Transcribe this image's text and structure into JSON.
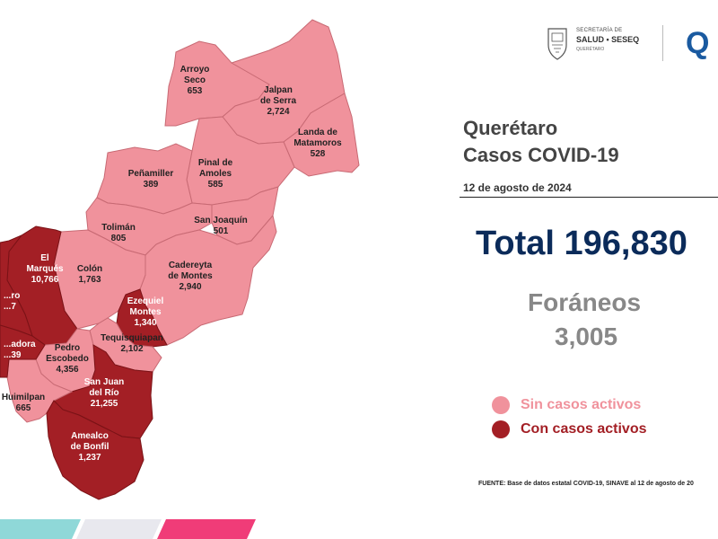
{
  "header": {
    "logo_line1": "SECRETARÍA DE",
    "logo_line2": "SALUD • SESEQ",
    "logo_line3": "QUERÉTARO",
    "logo_q": "Q"
  },
  "title_line1": "Querétaro",
  "title_line2": "Casos COVID-19",
  "date": "12 de agosto de 2024",
  "total": "Total 196,830",
  "foraneos_label": "Foráneos",
  "foraneos_value": "3,005",
  "legend": {
    "inactive_label": "Sin casos activos",
    "inactive_color": "#f0929c",
    "active_label": "Con casos activos",
    "active_color": "#a31f25"
  },
  "source": "FUENTE: Base de datos estatal COVID-19, SINAVE al 12 de agosto de 20",
  "municipalities": [
    {
      "name_lines": [
        "Arroyo",
        "Seco"
      ],
      "cases": "653",
      "active": false
    },
    {
      "name_lines": [
        "Jalpan",
        "de Serra"
      ],
      "cases": "2,724",
      "active": false
    },
    {
      "name_lines": [
        "Landa de",
        "Matamoros"
      ],
      "cases": "528",
      "active": false
    },
    {
      "name_lines": [
        "Pinal de",
        "Amoles"
      ],
      "cases": "585",
      "active": false
    },
    {
      "name_lines": [
        "Peñamiller"
      ],
      "cases": "389",
      "active": false
    },
    {
      "name_lines": [
        "San Joaquín"
      ],
      "cases": "501",
      "active": false
    },
    {
      "name_lines": [
        "Tolimán"
      ],
      "cases": "805",
      "active": false
    },
    {
      "name_lines": [
        "Cadereyta",
        "de Montes"
      ],
      "cases": "2,940",
      "active": false
    },
    {
      "name_lines": [
        "Colón"
      ],
      "cases": "1,763",
      "active": false
    },
    {
      "name_lines": [
        "El",
        "Marqués"
      ],
      "cases": "10,766",
      "active": true
    },
    {
      "name_lines": [
        "Ezequiel",
        "Montes"
      ],
      "cases": "1,340",
      "active": true
    },
    {
      "name_lines": [
        "Tequisquiapan"
      ],
      "cases": "2,102",
      "active": false
    },
    {
      "name_lines": [
        "Pedro",
        "Escobedo"
      ],
      "cases": "4,356",
      "active": false
    },
    {
      "name_lines": [
        "San Juan",
        "del Río"
      ],
      "cases": "21,255",
      "active": true
    },
    {
      "name_lines": [
        "Huimilpan"
      ],
      "cases": "665",
      "active": false
    },
    {
      "name_lines": [
        "Amealco",
        "de Bonfil"
      ],
      "cases": "1,237",
      "active": true
    },
    {
      "name_lines": [
        "...ro"
      ],
      "cases": "...7",
      "active": true
    },
    {
      "name_lines": [
        "...adora"
      ],
      "cases": "...39",
      "active": true
    }
  ]
}
